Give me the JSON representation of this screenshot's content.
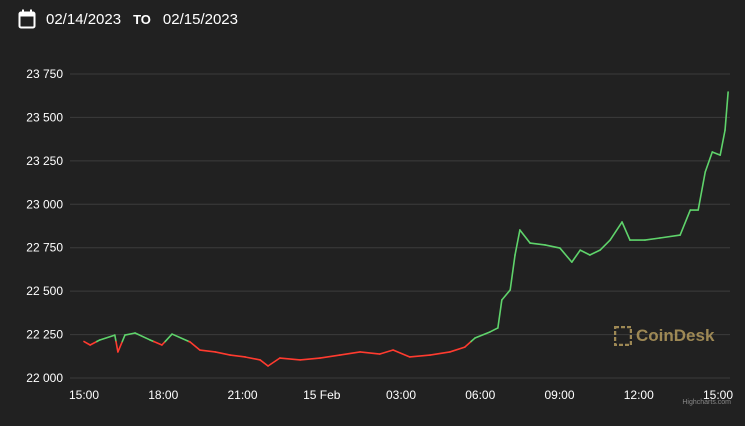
{
  "header": {
    "date_from": "02/14/2023",
    "separator": "TO",
    "date_to": "02/15/2023",
    "icon": "calendar-icon"
  },
  "watermark": "CoinDesk",
  "credit": "Highcharts.com",
  "colors": {
    "up": "#5fd36b",
    "down": "#ff3b2f",
    "grid": "#3c3c3c",
    "background": "#212121"
  },
  "chart_data": {
    "type": "line",
    "title": "",
    "xlabel": "",
    "ylabel": "",
    "ylim": [
      22000,
      23750
    ],
    "yticks": [
      "22 000",
      "22 250",
      "22 500",
      "22 750",
      "23 000",
      "23 250",
      "23 500",
      "23 750"
    ],
    "ytick_values": [
      22000,
      22250,
      22500,
      22750,
      23000,
      23250,
      23500,
      23750
    ],
    "xticks": [
      "15:00",
      "18:00",
      "21:00",
      "15 Feb",
      "03:00",
      "06:00",
      "09:00",
      "12:00",
      "15:00"
    ],
    "xtick_values": [
      "2023-02-14T15:00",
      "2023-02-14T18:00",
      "2023-02-14T21:00",
      "2023-02-15T00:00",
      "2023-02-15T03:00",
      "2023-02-15T06:00",
      "2023-02-15T09:00",
      "2023-02-15T12:00",
      "2023-02-15T15:00"
    ],
    "grid": true,
    "color_rule": "green above opening price, red below",
    "x": [
      "2023-02-14T15:00",
      "2023-02-14T15:14",
      "2023-02-14T15:36",
      "2023-02-14T16:10",
      "2023-02-14T16:17",
      "2023-02-14T16:33",
      "2023-02-14T16:56",
      "2023-02-14T17:30",
      "2023-02-14T17:57",
      "2023-02-14T18:20",
      "2023-02-14T19:01",
      "2023-02-14T19:23",
      "2023-02-14T19:58",
      "2023-02-14T20:32",
      "2023-02-14T21:06",
      "2023-02-14T21:40",
      "2023-02-14T21:58",
      "2023-02-14T22:25",
      "2023-02-14T23:11",
      "2023-02-14T23:56",
      "2023-02-15T00:41",
      "2023-02-15T01:27",
      "2023-02-15T02:12",
      "2023-02-15T02:42",
      "2023-02-15T03:20",
      "2023-02-15T04:06",
      "2023-02-15T04:51",
      "2023-02-15T05:25",
      "2023-02-15T05:48",
      "2023-02-15T06:22",
      "2023-02-15T06:40",
      "2023-02-15T06:49",
      "2023-02-15T07:08",
      "2023-02-15T07:19",
      "2023-02-15T07:30",
      "2023-02-15T07:53",
      "2023-02-15T08:27",
      "2023-02-15T09:01",
      "2023-02-15T09:28",
      "2023-02-15T09:47",
      "2023-02-15T10:09",
      "2023-02-15T10:32",
      "2023-02-15T10:55",
      "2023-02-15T11:22",
      "2023-02-15T11:40",
      "2023-02-15T12:14",
      "2023-02-15T12:48",
      "2023-02-15T13:34",
      "2023-02-15T13:57",
      "2023-02-15T14:15",
      "2023-02-15T14:31",
      "2023-02-15T14:47",
      "2023-02-15T15:05",
      "2023-02-15T15:16",
      "2023-02-15T15:23"
    ],
    "y": [
      22210,
      22190,
      22219,
      22247,
      22150,
      22247,
      22259,
      22219,
      22190,
      22253,
      22207,
      22161,
      22150,
      22132,
      22121,
      22104,
      22069,
      22115,
      22104,
      22115,
      22132,
      22150,
      22138,
      22161,
      22121,
      22132,
      22150,
      22178,
      22230,
      22265,
      22288,
      22449,
      22507,
      22708,
      22852,
      22777,
      22766,
      22748,
      22667,
      22736,
      22708,
      22736,
      22794,
      22898,
      22794,
      22794,
      22806,
      22823,
      22967,
      22967,
      23186,
      23301,
      23283,
      23427,
      23646
    ]
  }
}
